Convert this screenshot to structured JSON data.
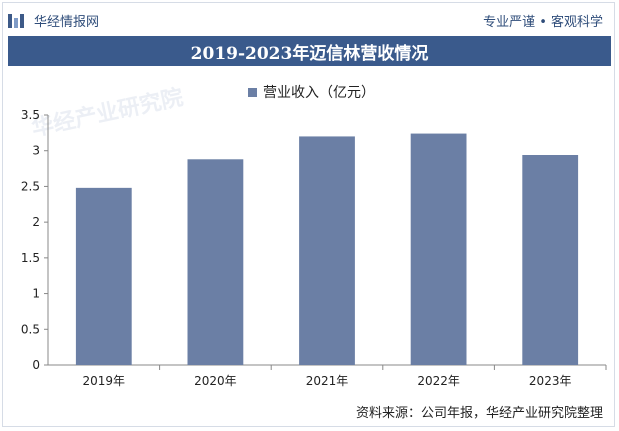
{
  "header": {
    "brand_name": "华经情报网",
    "tagline": "专业严谨 • 客观科学"
  },
  "watermark_text": "华经产业研究院",
  "chart_data": {
    "type": "bar",
    "title": "2019-2023年迈信林营收情况",
    "categories": [
      "2019年",
      "2020年",
      "2021年",
      "2022年",
      "2023年"
    ],
    "series": [
      {
        "name": "营业收入（亿元）",
        "values": [
          2.48,
          2.88,
          3.2,
          3.24,
          2.94
        ]
      }
    ],
    "y_ticks": [
      "0",
      "0.5",
      "1",
      "1.5",
      "2",
      "2.5",
      "3",
      "3.5"
    ],
    "ylim": [
      0,
      3.5
    ],
    "xlabel": "",
    "ylabel": "",
    "grid": false,
    "legend_position": "top-center",
    "bar_color": "#6b7fa5"
  },
  "source": "资料来源：公司年报，华经产业研究院整理"
}
